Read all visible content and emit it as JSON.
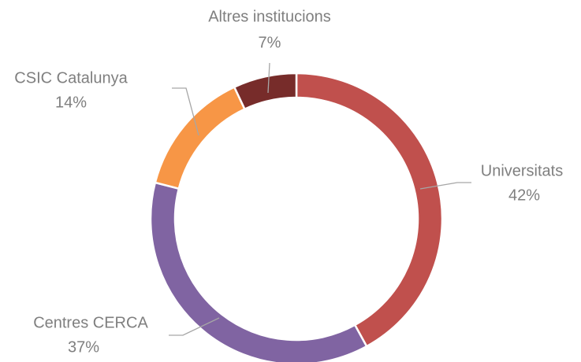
{
  "chart_data": {
    "type": "donut",
    "categories": [
      "Universitats",
      "Centres CERCA",
      "CSIC Catalunya",
      "Altres institucions"
    ],
    "values": [
      42,
      37,
      14,
      7
    ],
    "value_labels": [
      "42%",
      "37%",
      "14%",
      "7%"
    ],
    "colors": [
      "#c0504d",
      "#8064a2",
      "#f79646",
      "#772c2a"
    ]
  }
}
